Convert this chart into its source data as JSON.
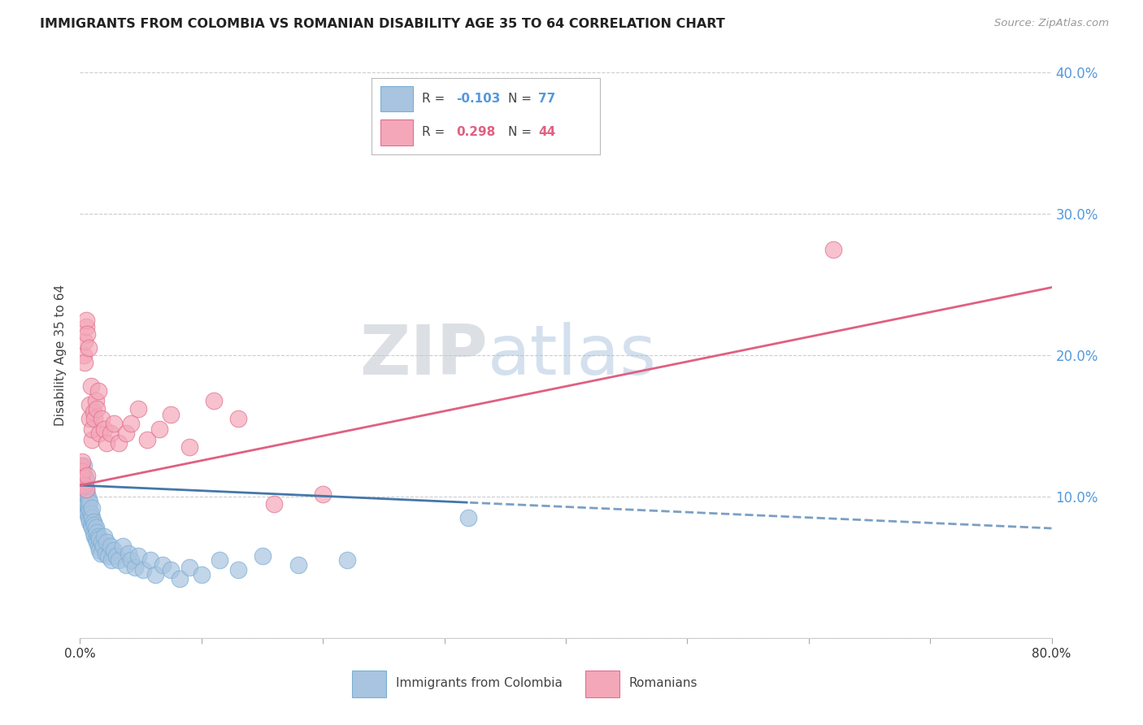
{
  "title": "IMMIGRANTS FROM COLOMBIA VS ROMANIAN DISABILITY AGE 35 TO 64 CORRELATION CHART",
  "source": "Source: ZipAtlas.com",
  "ylabel": "Disability Age 35 to 64",
  "xlim": [
    0.0,
    0.8
  ],
  "ylim": [
    0.0,
    0.4
  ],
  "xticks": [
    0.0,
    0.1,
    0.2,
    0.3,
    0.4,
    0.5,
    0.6,
    0.7,
    0.8
  ],
  "xtick_labels": [
    "0.0%",
    "",
    "",
    "",
    "",
    "",
    "",
    "",
    "80.0%"
  ],
  "yticks": [
    0.0,
    0.1,
    0.2,
    0.3,
    0.4
  ],
  "ytick_labels": [
    "",
    "10.0%",
    "20.0%",
    "30.0%",
    "40.0%"
  ],
  "grid_color": "#cccccc",
  "background_color": "#ffffff",
  "colombia_color": "#a8c4e0",
  "colombia_edge": "#7bafd4",
  "romania_color": "#f4a7b9",
  "romania_edge": "#e07090",
  "colombia_R": -0.103,
  "colombia_N": 77,
  "romania_R": 0.298,
  "romania_N": 44,
  "colombia_trend_color": "#4477aa",
  "romania_trend_color": "#e06080",
  "watermark": "ZIPatlas",
  "colombia_x": [
    0.001,
    0.001,
    0.001,
    0.002,
    0.002,
    0.002,
    0.002,
    0.003,
    0.003,
    0.003,
    0.003,
    0.004,
    0.004,
    0.004,
    0.004,
    0.005,
    0.005,
    0.005,
    0.005,
    0.006,
    0.006,
    0.006,
    0.007,
    0.007,
    0.007,
    0.008,
    0.008,
    0.008,
    0.009,
    0.009,
    0.01,
    0.01,
    0.01,
    0.011,
    0.011,
    0.012,
    0.012,
    0.013,
    0.013,
    0.014,
    0.014,
    0.015,
    0.015,
    0.016,
    0.016,
    0.017,
    0.018,
    0.019,
    0.02,
    0.021,
    0.022,
    0.023,
    0.025,
    0.026,
    0.028,
    0.03,
    0.032,
    0.035,
    0.038,
    0.04,
    0.042,
    0.045,
    0.048,
    0.052,
    0.058,
    0.062,
    0.068,
    0.075,
    0.082,
    0.09,
    0.1,
    0.115,
    0.13,
    0.15,
    0.18,
    0.22,
    0.32
  ],
  "colombia_y": [
    0.11,
    0.115,
    0.12,
    0.095,
    0.105,
    0.112,
    0.118,
    0.1,
    0.108,
    0.115,
    0.122,
    0.095,
    0.102,
    0.108,
    0.115,
    0.09,
    0.098,
    0.105,
    0.112,
    0.088,
    0.095,
    0.102,
    0.085,
    0.092,
    0.098,
    0.082,
    0.09,
    0.096,
    0.08,
    0.088,
    0.078,
    0.085,
    0.092,
    0.075,
    0.082,
    0.072,
    0.08,
    0.07,
    0.078,
    0.068,
    0.075,
    0.065,
    0.072,
    0.062,
    0.07,
    0.06,
    0.068,
    0.065,
    0.072,
    0.06,
    0.068,
    0.058,
    0.065,
    0.055,
    0.062,
    0.058,
    0.055,
    0.065,
    0.052,
    0.06,
    0.055,
    0.05,
    0.058,
    0.048,
    0.055,
    0.045,
    0.052,
    0.048,
    0.042,
    0.05,
    0.045,
    0.055,
    0.048,
    0.058,
    0.052,
    0.055,
    0.085
  ],
  "romania_x": [
    0.001,
    0.001,
    0.002,
    0.002,
    0.002,
    0.003,
    0.003,
    0.004,
    0.004,
    0.005,
    0.005,
    0.005,
    0.006,
    0.006,
    0.007,
    0.008,
    0.008,
    0.009,
    0.01,
    0.01,
    0.011,
    0.012,
    0.013,
    0.014,
    0.015,
    0.016,
    0.018,
    0.02,
    0.022,
    0.025,
    0.028,
    0.032,
    0.038,
    0.042,
    0.048,
    0.055,
    0.065,
    0.075,
    0.09,
    0.11,
    0.13,
    0.16,
    0.2,
    0.62
  ],
  "romania_y": [
    0.115,
    0.122,
    0.11,
    0.118,
    0.125,
    0.108,
    0.2,
    0.195,
    0.21,
    0.22,
    0.225,
    0.105,
    0.215,
    0.115,
    0.205,
    0.155,
    0.165,
    0.178,
    0.14,
    0.148,
    0.16,
    0.155,
    0.168,
    0.162,
    0.175,
    0.145,
    0.155,
    0.148,
    0.138,
    0.145,
    0.152,
    0.138,
    0.145,
    0.152,
    0.162,
    0.14,
    0.148,
    0.158,
    0.135,
    0.168,
    0.155,
    0.095,
    0.102,
    0.275
  ]
}
